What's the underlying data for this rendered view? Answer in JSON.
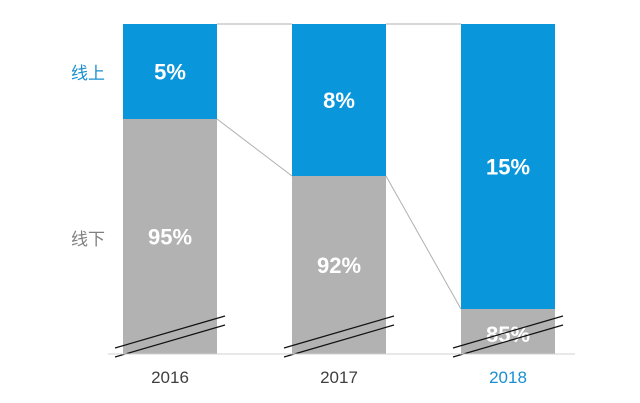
{
  "chart_data": {
    "type": "bar",
    "stacked": true,
    "categories": [
      "2016",
      "2017",
      "2018"
    ],
    "highlight_category": "2018",
    "series": [
      {
        "name": "线下",
        "values": [
          95,
          92,
          85
        ],
        "labels": [
          "95%",
          "92%",
          "85%"
        ],
        "color": "#b2b2b2"
      },
      {
        "name": "线上",
        "values": [
          5,
          8,
          15
        ],
        "labels": [
          "5%",
          "8%",
          "15%"
        ],
        "color": "#0a96db"
      }
    ],
    "axis_break": true,
    "legend_position": "left",
    "colors": {
      "online": "#0a96db",
      "offline": "#b2b2b2",
      "online_label": "#1a8fd0",
      "offline_label": "#808080",
      "highlight_tick": "#1a8fd0"
    }
  }
}
